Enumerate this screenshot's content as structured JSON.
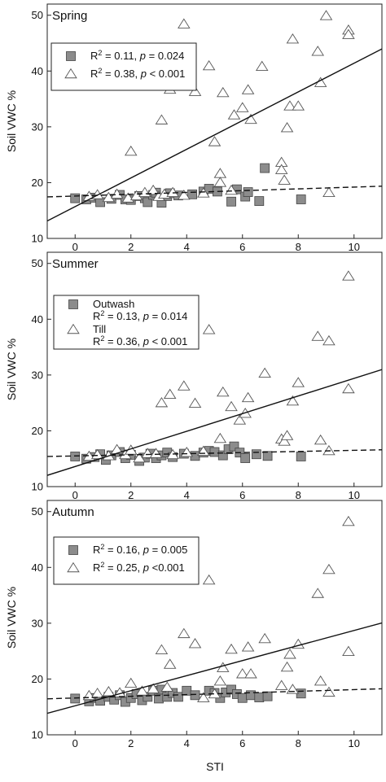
{
  "figure": {
    "x_axis_label": "STI",
    "y_axis_label": "Soil VWC %"
  },
  "chart_data": [
    {
      "type": "scatter",
      "title": "Spring",
      "xlabel": "",
      "ylabel": "Soil VWC %",
      "xlim": [
        -1,
        11
      ],
      "ylim": [
        10,
        52
      ],
      "xticks": [
        0,
        2,
        4,
        6,
        8,
        10
      ],
      "yticks": [
        10,
        20,
        30,
        40,
        50
      ],
      "legend_position": "top-left",
      "legend": [
        {
          "marker": "square",
          "r2": "R2 = 0.11,",
          "p": "p = 0.024"
        },
        {
          "marker": "triangle",
          "r2": "R2 = 0.38,",
          "p": "p < 0.001"
        }
      ],
      "series": [
        {
          "marker": "square",
          "fill": "#8c8c8c",
          "fit": {
            "style": "dashed",
            "intercept": 17.6,
            "slope": 0.16
          },
          "points": [
            [
              0,
              17.2
            ],
            [
              0.4,
              17
            ],
            [
              0.7,
              17.3
            ],
            [
              0.9,
              16.5
            ],
            [
              1.3,
              17.1
            ],
            [
              1.6,
              17.8
            ],
            [
              1.8,
              17
            ],
            [
              2,
              16.9
            ],
            [
              2.3,
              17.6
            ],
            [
              2.5,
              17.2
            ],
            [
              2.6,
              16.5
            ],
            [
              2.8,
              17.8
            ],
            [
              2.9,
              18.2
            ],
            [
              3.1,
              16.4
            ],
            [
              3.3,
              17.6
            ],
            [
              3.4,
              18.1
            ],
            [
              3.7,
              17.7
            ],
            [
              4.2,
              17.9
            ],
            [
              4.6,
              18.4
            ],
            [
              4.8,
              18.9
            ],
            [
              5.1,
              18.4
            ],
            [
              5.6,
              16.6
            ],
            [
              5.8,
              18.8
            ],
            [
              6.1,
              17.5
            ],
            [
              6.2,
              18.3
            ],
            [
              6.6,
              16.7
            ],
            [
              6.8,
              22.6
            ],
            [
              8.1,
              17
            ]
          ]
        },
        {
          "marker": "triangle",
          "fill": "#ffffff",
          "fit": {
            "style": "solid",
            "intercept": 15.7,
            "slope": 2.57
          },
          "points": [
            [
              0.5,
              17.5
            ],
            [
              0.8,
              17.8
            ],
            [
              1.2,
              17.3
            ],
            [
              1.5,
              17.9
            ],
            [
              1.9,
              17.2
            ],
            [
              2,
              25.6
            ],
            [
              2.2,
              17.6
            ],
            [
              2.5,
              18.2
            ],
            [
              2.8,
              18.6
            ],
            [
              3,
              17.5
            ],
            [
              3.1,
              31.2
            ],
            [
              3.2,
              17.9
            ],
            [
              3.4,
              36.7
            ],
            [
              3.5,
              18.2
            ],
            [
              3.9,
              48.4
            ],
            [
              3.9,
              17.7
            ],
            [
              4.3,
              36.3
            ],
            [
              4.6,
              18.1
            ],
            [
              4.8,
              40.9
            ],
            [
              5,
              27.3
            ],
            [
              5.2,
              21.6
            ],
            [
              5.2,
              20
            ],
            [
              5.3,
              36.1
            ],
            [
              5.6,
              18.6
            ],
            [
              5.7,
              32.1
            ],
            [
              6,
              33.4
            ],
            [
              6.2,
              36.6
            ],
            [
              6.3,
              31.3
            ],
            [
              6.7,
              40.8
            ],
            [
              7.4,
              23.6
            ],
            [
              7.4,
              22.3
            ],
            [
              7.5,
              20.4
            ],
            [
              7.6,
              29.8
            ],
            [
              7.7,
              33.7
            ],
            [
              7.8,
              45.7
            ],
            [
              8,
              33.7
            ],
            [
              8.7,
              43.5
            ],
            [
              8.8,
              37.9
            ],
            [
              9,
              49.9
            ],
            [
              9.1,
              18.2
            ],
            [
              9.8,
              47.3
            ],
            [
              9.8,
              46.5
            ]
          ]
        }
      ]
    },
    {
      "type": "scatter",
      "title": "Summer",
      "xlabel": "",
      "ylabel": "Soil VWC %",
      "xlim": [
        -1,
        11
      ],
      "ylim": [
        10,
        52
      ],
      "xticks": [
        0,
        2,
        4,
        6,
        8,
        10
      ],
      "yticks": [
        10,
        20,
        30,
        40,
        50
      ],
      "legend_position": "top-left",
      "legend": [
        {
          "marker": "square",
          "name": "Outwash",
          "r2": "R2 = 0.13,",
          "p": "p = 0.014"
        },
        {
          "marker": "triangle",
          "name": "Till",
          "r2": "R2 = 0.36,",
          "p": "p < 0.001"
        }
      ],
      "series": [
        {
          "marker": "square",
          "fill": "#8c8c8c",
          "fit": {
            "style": "dashed",
            "intercept": 15.5,
            "slope": 0.1
          },
          "points": [
            [
              0,
              15.4
            ],
            [
              0.4,
              15
            ],
            [
              0.7,
              15.3
            ],
            [
              0.9,
              15.8
            ],
            [
              1.1,
              14.8
            ],
            [
              1.3,
              15.6
            ],
            [
              1.6,
              16.2
            ],
            [
              1.8,
              15.1
            ],
            [
              2,
              15.7
            ],
            [
              2.3,
              14.6
            ],
            [
              2.5,
              15.2
            ],
            [
              2.7,
              15.9
            ],
            [
              2.9,
              15.1
            ],
            [
              3.1,
              15.6
            ],
            [
              3.3,
              16.1
            ],
            [
              3.5,
              15.3
            ],
            [
              3.9,
              15.9
            ],
            [
              4.3,
              15.5
            ],
            [
              4.6,
              16.1
            ],
            [
              4.8,
              16.4
            ],
            [
              5,
              16.2
            ],
            [
              5.3,
              15.6
            ],
            [
              5.5,
              16.7
            ],
            [
              5.7,
              17.2
            ],
            [
              5.9,
              16.1
            ],
            [
              6.1,
              15.1
            ],
            [
              6.5,
              15.8
            ],
            [
              6.9,
              15.5
            ],
            [
              8.1,
              15.4
            ]
          ]
        },
        {
          "marker": "triangle",
          "fill": "#ffffff",
          "fit": {
            "style": "solid",
            "intercept": 13.6,
            "slope": 1.58
          },
          "points": [
            [
              0.5,
              15.4
            ],
            [
              0.8,
              15.7
            ],
            [
              1.2,
              15.5
            ],
            [
              1.5,
              16.6
            ],
            [
              1.8,
              15.7
            ],
            [
              2,
              16.5
            ],
            [
              2.3,
              15.1
            ],
            [
              2.6,
              15.9
            ],
            [
              2.9,
              15.9
            ],
            [
              3.1,
              25
            ],
            [
              3.4,
              26.5
            ],
            [
              3.5,
              15.7
            ],
            [
              3.9,
              28
            ],
            [
              4,
              16.1
            ],
            [
              4.3,
              24.9
            ],
            [
              4.6,
              16.3
            ],
            [
              4.8,
              38.1
            ],
            [
              5.2,
              18.6
            ],
            [
              5.3,
              26.9
            ],
            [
              5.6,
              24.3
            ],
            [
              5.9,
              21.9
            ],
            [
              6.1,
              23.1
            ],
            [
              6.2,
              25.9
            ],
            [
              6.8,
              30.3
            ],
            [
              7.4,
              18.5
            ],
            [
              7.5,
              18.1
            ],
            [
              7.6,
              19.1
            ],
            [
              7.8,
              25.3
            ],
            [
              8,
              28.6
            ],
            [
              8.7,
              36.9
            ],
            [
              8.8,
              18.3
            ],
            [
              9.1,
              36.1
            ],
            [
              9.1,
              16.4
            ],
            [
              9.8,
              47.7
            ],
            [
              9.8,
              27.5
            ]
          ]
        }
      ]
    },
    {
      "type": "scatter",
      "title": "Autumn",
      "xlabel": "STI",
      "ylabel": "Soil VWC %",
      "xlim": [
        -1,
        11
      ],
      "ylim": [
        10,
        52
      ],
      "xticks": [
        0,
        2,
        4,
        6,
        8,
        10
      ],
      "yticks": [
        10,
        20,
        30,
        40,
        50
      ],
      "legend_position": "top-left",
      "legend": [
        {
          "marker": "square",
          "r2": "R2 = 0.16,",
          "p": "p = 0.005"
        },
        {
          "marker": "triangle",
          "r2": "R2 = 0.25,",
          "p": "p <0.001"
        }
      ],
      "series": [
        {
          "marker": "square",
          "fill": "#8c8c8c",
          "fit": {
            "style": "dashed",
            "intercept": 16.6,
            "slope": 0.15
          },
          "points": [
            [
              0,
              16.5
            ],
            [
              0.5,
              16
            ],
            [
              0.7,
              16.6
            ],
            [
              0.9,
              16.1
            ],
            [
              1.2,
              16.8
            ],
            [
              1.4,
              16.3
            ],
            [
              1.6,
              17.1
            ],
            [
              1.8,
              15.9
            ],
            [
              2,
              16.6
            ],
            [
              2.2,
              17.3
            ],
            [
              2.4,
              16.2
            ],
            [
              2.6,
              16.8
            ],
            [
              2.8,
              17.9
            ],
            [
              3,
              16.5
            ],
            [
              3.1,
              18.1
            ],
            [
              3.3,
              16.8
            ],
            [
              3.5,
              17.5
            ],
            [
              3.7,
              16.8
            ],
            [
              4,
              17.9
            ],
            [
              4.3,
              17.1
            ],
            [
              4.8,
              17.9
            ],
            [
              5,
              17.5
            ],
            [
              5.2,
              16.6
            ],
            [
              5.4,
              17.6
            ],
            [
              5.6,
              18.1
            ],
            [
              5.8,
              17.3
            ],
            [
              6,
              16.6
            ],
            [
              6.3,
              17.1
            ],
            [
              6.6,
              16.7
            ],
            [
              6.9,
              16.9
            ],
            [
              8.1,
              17.4
            ]
          ]
        },
        {
          "marker": "triangle",
          "fill": "#ffffff",
          "fit": {
            "style": "solid",
            "intercept": 15.2,
            "slope": 1.35
          },
          "points": [
            [
              0.5,
              17
            ],
            [
              0.8,
              17.4
            ],
            [
              1.2,
              17.7
            ],
            [
              1.6,
              17.5
            ],
            [
              2,
              19.2
            ],
            [
              2.4,
              17.8
            ],
            [
              2.8,
              18.2
            ],
            [
              3.1,
              25.2
            ],
            [
              3.3,
              18.5
            ],
            [
              3.4,
              22.6
            ],
            [
              3.9,
              28.1
            ],
            [
              4.3,
              26.3
            ],
            [
              4.6,
              16.6
            ],
            [
              4.8,
              37.7
            ],
            [
              5,
              17.3
            ],
            [
              5.2,
              19.6
            ],
            [
              5.3,
              22
            ],
            [
              5.6,
              25.3
            ],
            [
              6,
              20.9
            ],
            [
              6.2,
              25.7
            ],
            [
              6.3,
              20.9
            ],
            [
              6.8,
              27.2
            ],
            [
              7.4,
              18.8
            ],
            [
              7.6,
              22.1
            ],
            [
              7.7,
              24.4
            ],
            [
              7.8,
              18.1
            ],
            [
              8,
              26.2
            ],
            [
              8.7,
              35.3
            ],
            [
              8.8,
              19.6
            ],
            [
              9.1,
              17.6
            ],
            [
              9.1,
              39.6
            ],
            [
              9.8,
              48.2
            ],
            [
              9.8,
              24.9
            ]
          ]
        }
      ]
    }
  ]
}
